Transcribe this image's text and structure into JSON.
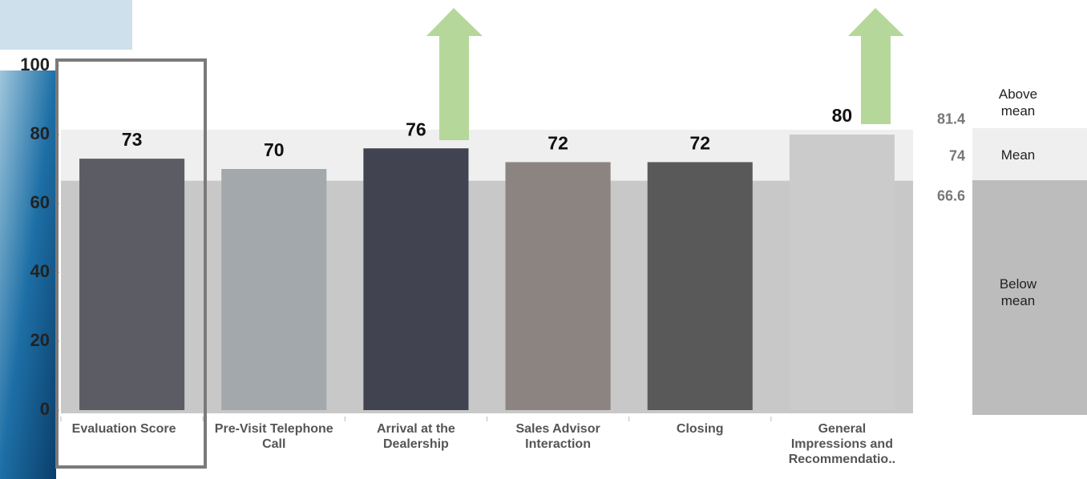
{
  "chart_data": {
    "type": "bar",
    "categories": [
      "Evaluation Score",
      "Pre-Visit Telephone Call",
      "Arrival at the Dealership",
      "Sales Advisor Interaction",
      "Closing",
      "General Impressions and Recommendatio.."
    ],
    "values": [
      73,
      70,
      76,
      72,
      72,
      80
    ],
    "colors": [
      "#5b5c64",
      "#a2a8ab",
      "#414450",
      "#8c8480",
      "#595959",
      "#cbcbcb"
    ],
    "ylim": [
      0,
      100
    ],
    "yticks": [
      0,
      20,
      40,
      60,
      80,
      100
    ],
    "reference_lines": [
      81.4,
      74,
      66.6
    ],
    "legend": [
      "Above mean",
      "Mean",
      "Below mean"
    ]
  }
}
